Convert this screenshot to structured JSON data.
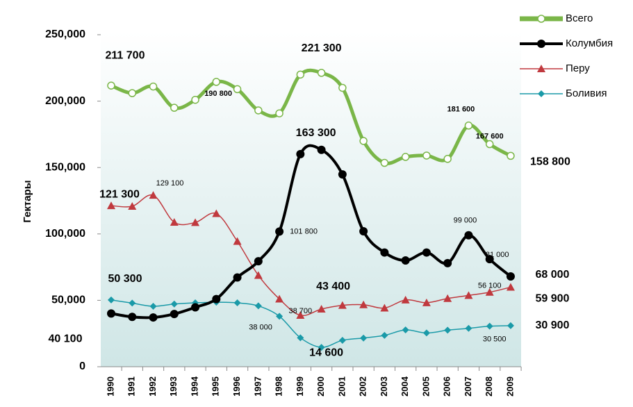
{
  "chart_data": {
    "type": "line",
    "ylabel": "Гектары",
    "categories": [
      "1990",
      "1991",
      "1992",
      "1993",
      "1994",
      "1995",
      "1996",
      "1997",
      "1998",
      "1999",
      "2000",
      "2001",
      "2002",
      "2003",
      "2004",
      "2005",
      "2006",
      "2007",
      "2008",
      "2009"
    ],
    "ylim": [
      0,
      250000
    ],
    "yticks": [
      0,
      {
        "value": 50000,
        "label": "50,000"
      },
      {
        "value": 100000,
        "label": "100,000"
      },
      {
        "value": 150000,
        "label": "150,000"
      },
      {
        "value": 200000,
        "label": "200,000"
      },
      {
        "value": 250000,
        "label": "250,000"
      }
    ],
    "series": [
      {
        "name": "Всего",
        "color": "#7ab648",
        "values": [
          211700,
          206000,
          211000,
          195000,
          201000,
          214500,
          209000,
          193000,
          190800,
          220000,
          221300,
          210000,
          170000,
          153500,
          158000,
          159000,
          156500,
          181600,
          167600,
          158800
        ],
        "value_labels": [
          "211 700",
          null,
          null,
          null,
          null,
          null,
          null,
          null,
          "190 800",
          null,
          "221 300",
          null,
          null,
          null,
          null,
          null,
          null,
          "181 600",
          "167 600",
          "158 800"
        ]
      },
      {
        "name": "Колумбия",
        "color": "#000000",
        "values": [
          40100,
          37500,
          37100,
          39700,
          44700,
          50900,
          67200,
          79400,
          101800,
          160100,
          163300,
          144800,
          102000,
          86000,
          80000,
          86000,
          78000,
          99000,
          81000,
          68000
        ],
        "value_labels": [
          "40 100",
          null,
          null,
          null,
          null,
          null,
          null,
          null,
          "101 800",
          null,
          "163 300",
          null,
          null,
          null,
          null,
          null,
          null,
          "99 000",
          "81 000",
          "68 000"
        ]
      },
      {
        "name": "Перу",
        "color": "#c0393e",
        "values": [
          121300,
          120800,
          129100,
          108800,
          108600,
          115300,
          94400,
          68800,
          51000,
          38700,
          43400,
          46200,
          46700,
          44200,
          50300,
          48200,
          51400,
          53700,
          56100,
          59900
        ],
        "value_labels": [
          "121 300",
          null,
          "129 100",
          null,
          null,
          null,
          null,
          null,
          null,
          "38 700",
          "43 400",
          null,
          null,
          null,
          null,
          null,
          null,
          null,
          "56 100",
          "59 900"
        ]
      },
      {
        "name": "Боливия",
        "color": "#1a9aa8",
        "values": [
          50300,
          47900,
          45500,
          47200,
          48100,
          48600,
          48100,
          45800,
          38000,
          21800,
          14600,
          19900,
          21600,
          23600,
          27700,
          25400,
          27500,
          28900,
          30500,
          30900
        ],
        "value_labels": [
          "50 300",
          null,
          null,
          null,
          null,
          null,
          null,
          null,
          "38 000",
          null,
          "14 600",
          null,
          null,
          null,
          null,
          null,
          null,
          null,
          "30 500",
          "30 900"
        ]
      }
    ]
  }
}
